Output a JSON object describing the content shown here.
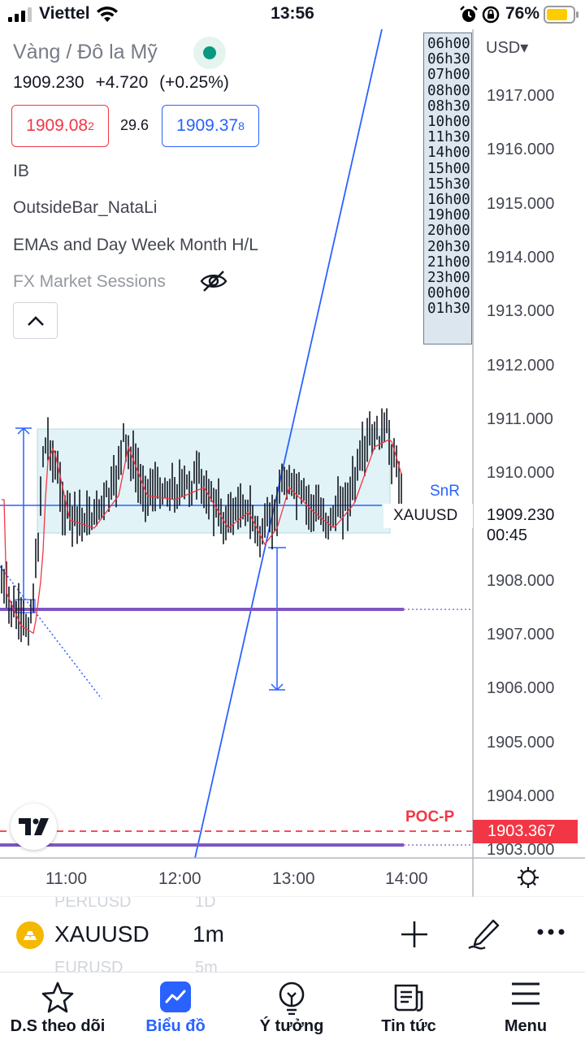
{
  "status_bar": {
    "carrier": "Viettel",
    "time": "13:56",
    "battery": "76%"
  },
  "chart": {
    "symbol_title": "Vàng / Đô la Mỹ",
    "last": "1909.230",
    "change": "+4.720",
    "change_pct": "(+0.25%)",
    "bid_main": "1909.08",
    "bid_sup": "2",
    "spread": "29.6",
    "ask_main": "1909.37",
    "ask_sup": "8",
    "indicators": [
      "IB",
      "OutsideBar_NataLi",
      "EMAs and Day Week Month H/L",
      "FX Market Sessions"
    ],
    "hidden_indicator": "FX Market Sessions",
    "sessions": [
      "06h00",
      "06h30",
      "07h00",
      "08h00",
      "08h30",
      "10h00",
      "11h30",
      "14h00",
      "15h00",
      "15h30",
      "16h00",
      "19h00",
      "20h00",
      "20h30",
      "21h00",
      "23h00",
      "00h00",
      "01h30"
    ],
    "currency": "USD",
    "currency_chevron": "▾",
    "price_axis": [
      "1917.000",
      "1916.000",
      "1915.000",
      "1914.000",
      "1913.000",
      "1912.000",
      "1911.000",
      "1910.000",
      "1908.000",
      "1907.000",
      "1906.000",
      "1905.000",
      "1904.000",
      "1903.000"
    ],
    "snr_label": "SnR",
    "symbol_label": "XAUUSD",
    "last_price": "1909.230",
    "countdown": "00:45",
    "poc_label": "POC-P",
    "poc_price": "1903.367",
    "time_axis": [
      "11:00",
      "12:00",
      "13:00",
      "14:00"
    ],
    "colors": {
      "up": "#089981",
      "down": "#f23645",
      "accent": "#2962ff",
      "box": "#e1f3f6",
      "poc": "#f23645",
      "purple_line": "#7e57c2"
    }
  },
  "toolbar": {
    "symbol": "XAUUSD",
    "interval": "1m",
    "ghost_above_symbol": "PERLUSD",
    "ghost_above_interval": "1D",
    "ghost_below_symbol": "EURUSD",
    "ghost_below_interval": "5m",
    "icons": [
      "plus-icon",
      "drawing-pen-icon",
      "more-icon"
    ]
  },
  "nav": {
    "items": [
      {
        "label": "D.S theo dõi",
        "icon": "star-icon"
      },
      {
        "label": "Biểu đồ",
        "icon": "chart-icon"
      },
      {
        "label": "Ý tưởng",
        "icon": "lightbulb-icon"
      },
      {
        "label": "Tin tức",
        "icon": "news-icon"
      },
      {
        "label": "Menu",
        "icon": "hamburger-icon"
      }
    ],
    "active": "Biểu đồ"
  }
}
